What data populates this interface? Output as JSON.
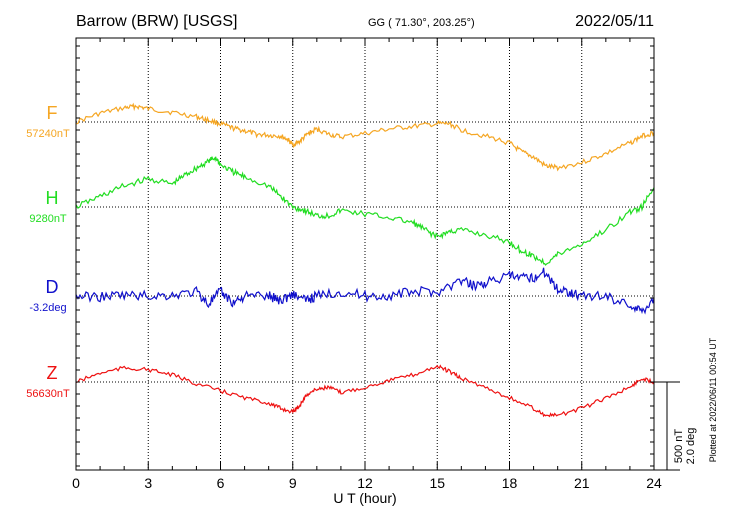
{
  "header": {
    "station": "Barrow (BRW)  [USGS]",
    "coords": "GG ( 71.30°, 203.25°)",
    "date": "2022/05/11"
  },
  "scale_note": {
    "nt": "500 nT",
    "deg": "2.0 deg"
  },
  "plotted_note": "Plotted at 2022/06/11 00:54 UT",
  "chart_data": {
    "type": "line",
    "xlabel": "U T (hour)",
    "xlim": [
      0,
      24
    ],
    "x_ticks": [
      "0",
      "3",
      "6",
      "9",
      "12",
      "15",
      "18",
      "21",
      "24"
    ],
    "scale_bar": {
      "nT": 500,
      "deg": 2.0
    },
    "series": [
      {
        "name": "F",
        "baseline_label": "57240nT",
        "color": "#f5a623",
        "unit": "nT",
        "baseline": 57240,
        "x": [
          0,
          1,
          2,
          2.5,
          3,
          4,
          5,
          5.5,
          6,
          6.5,
          7,
          7.5,
          8,
          8.5,
          8.8,
          9,
          9.3,
          9.6,
          10,
          10.5,
          11,
          12,
          13,
          14,
          15,
          15.5,
          16,
          17,
          18,
          18.5,
          19,
          19.5,
          20,
          21,
          22,
          23,
          23.5,
          24
        ],
        "values": [
          57240,
          57290,
          57320,
          57330,
          57315,
          57295,
          57270,
          57250,
          57230,
          57205,
          57190,
          57170,
          57165,
          57160,
          57140,
          57110,
          57130,
          57170,
          57200,
          57170,
          57155,
          57175,
          57200,
          57215,
          57230,
          57230,
          57195,
          57160,
          57120,
          57070,
          57040,
          56990,
          56980,
          57010,
          57060,
          57120,
          57160,
          57180
        ]
      },
      {
        "name": "H",
        "baseline_label": "9280nT",
        "color": "#22dd22",
        "unit": "nT",
        "baseline": 9280,
        "x": [
          0,
          1,
          2,
          3,
          4,
          4.5,
          5,
          5.5,
          5.8,
          6,
          6.5,
          7,
          8,
          8.5,
          9,
          9.5,
          10,
          10.5,
          11,
          12,
          13,
          14,
          14.5,
          15,
          15.5,
          16,
          17,
          18,
          18.5,
          19,
          19.5,
          20,
          21,
          22,
          23,
          23.5,
          24
        ],
        "values": [
          9280,
          9340,
          9400,
          9440,
          9410,
          9460,
          9500,
          9540,
          9560,
          9520,
          9480,
          9450,
          9400,
          9340,
          9280,
          9260,
          9230,
          9230,
          9260,
          9240,
          9220,
          9190,
          9150,
          9110,
          9140,
          9150,
          9120,
          9080,
          9030,
          9000,
          8960,
          9010,
          9070,
          9150,
          9250,
          9280,
          9390
        ]
      },
      {
        "name": "D",
        "baseline_label": "-3.2deg",
        "color": "#1010cc",
        "unit": "deg",
        "baseline": -3.2,
        "x": [
          0,
          1,
          2,
          3,
          4,
          5,
          5.5,
          6,
          6.5,
          7,
          8,
          8.5,
          9,
          9.5,
          10,
          11,
          12,
          13,
          14,
          15,
          16,
          16.5,
          17,
          18,
          18.5,
          19,
          19.5,
          20,
          20.5,
          21,
          22,
          23,
          23.5,
          24
        ],
        "values": [
          -3.2,
          -3.22,
          -3.18,
          -3.2,
          -3.18,
          -3.1,
          -3.38,
          -3.1,
          -3.35,
          -3.2,
          -3.2,
          -3.3,
          -3.15,
          -3.3,
          -3.2,
          -3.1,
          -3.2,
          -3.2,
          -3.1,
          -3.1,
          -2.85,
          -2.95,
          -2.9,
          -2.75,
          -2.8,
          -2.78,
          -2.65,
          -3.05,
          -3.1,
          -3.2,
          -3.2,
          -3.4,
          -3.55,
          -3.25
        ]
      },
      {
        "name": "Z",
        "baseline_label": "56630nT",
        "color": "#ee1111",
        "unit": "nT",
        "baseline": 56630,
        "x": [
          0,
          1,
          2,
          3,
          4,
          5,
          6,
          7,
          8,
          8.5,
          9,
          9.3,
          9.6,
          10,
          10.5,
          11,
          12,
          13,
          14,
          15,
          15.5,
          16,
          17,
          18,
          19,
          19.5,
          20,
          21,
          22,
          23,
          23.5,
          24
        ],
        "values": [
          56630,
          56680,
          56710,
          56700,
          56670,
          56620,
          56580,
          56540,
          56510,
          56480,
          56460,
          56500,
          56560,
          56590,
          56600,
          56570,
          56600,
          56640,
          56670,
          56720,
          56690,
          56650,
          56600,
          56540,
          56480,
          56440,
          56440,
          56480,
          56540,
          56600,
          56650,
          56630
        ]
      }
    ]
  }
}
